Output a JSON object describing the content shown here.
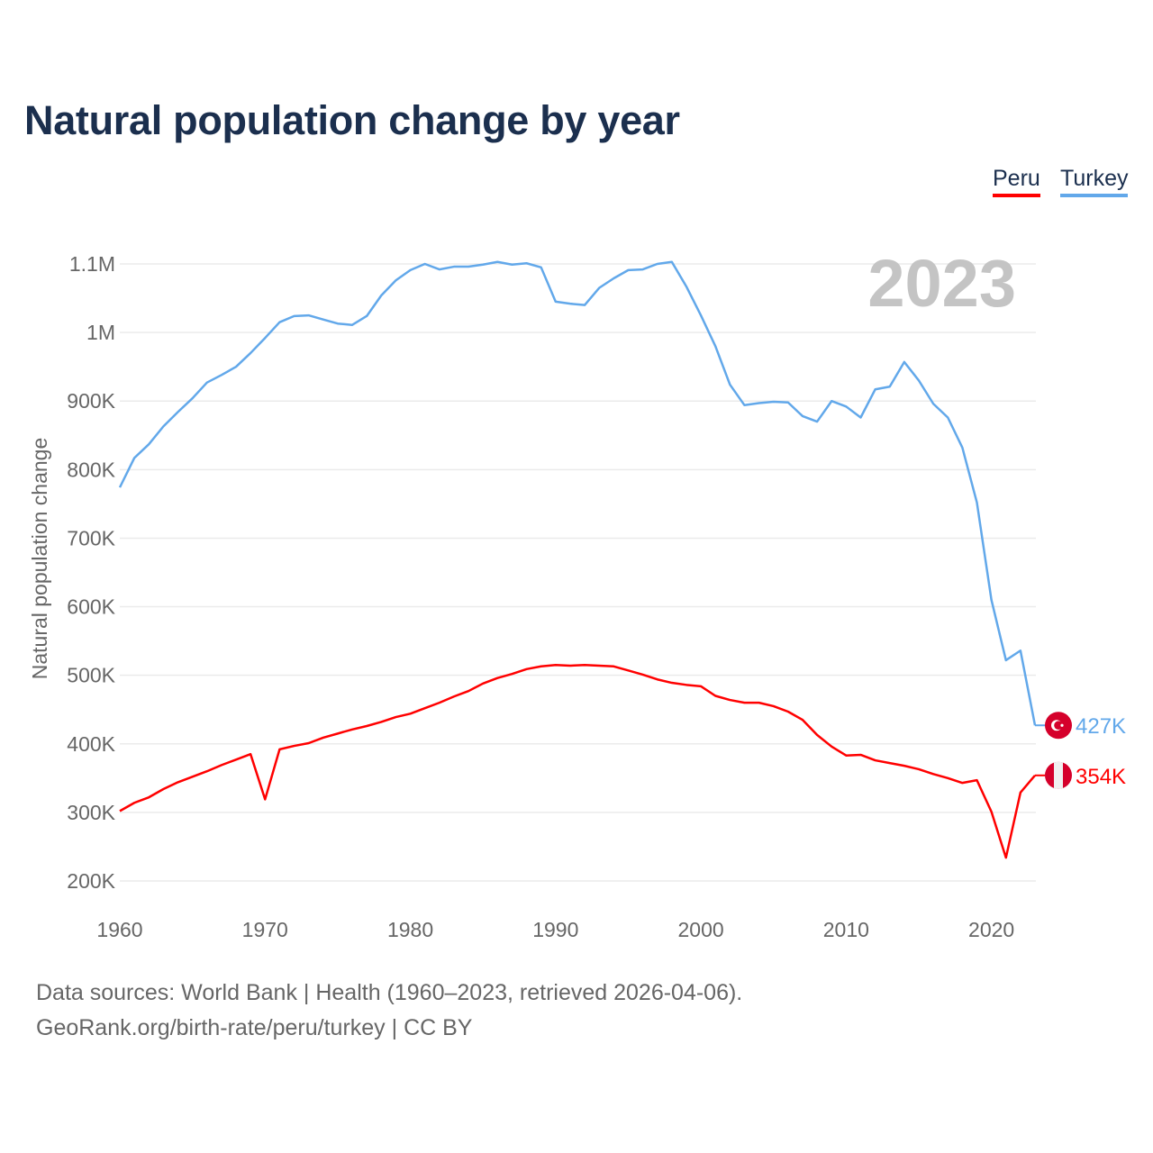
{
  "title": "Natural population change by year",
  "legend": {
    "peru": "Peru",
    "turkey": "Turkey"
  },
  "footer": {
    "line1": "Data sources: World Bank | Health (1960–2023, retrieved 2026-04-06).",
    "line2": "GeoRank.org/birth-rate/peru/turkey | CC BY"
  },
  "chart_data": {
    "type": "line",
    "title": "Natural population change by year",
    "xlabel": "",
    "ylabel": "Natural population change",
    "year_watermark": "2023",
    "xlim": [
      1960,
      2023
    ],
    "ylim": [
      200000,
      1100000
    ],
    "x_ticks": [
      1960,
      1970,
      1980,
      1990,
      2000,
      2010,
      2020
    ],
    "x_tick_labels": [
      "1960",
      "1970",
      "1980",
      "1990",
      "2000",
      "2010",
      "2020"
    ],
    "y_ticks": [
      200000,
      300000,
      400000,
      500000,
      600000,
      700000,
      800000,
      900000,
      1000000,
      1100000
    ],
    "y_tick_labels": [
      "200K",
      "300K",
      "400K",
      "500K",
      "600K",
      "700K",
      "800K",
      "900K",
      "1M",
      "1.1M"
    ],
    "grid": true,
    "legend_position": "top-right",
    "x": [
      1960,
      1961,
      1962,
      1963,
      1964,
      1965,
      1966,
      1967,
      1968,
      1969,
      1970,
      1971,
      1972,
      1973,
      1974,
      1975,
      1976,
      1977,
      1978,
      1979,
      1980,
      1981,
      1982,
      1983,
      1984,
      1985,
      1986,
      1987,
      1988,
      1989,
      1990,
      1991,
      1992,
      1993,
      1994,
      1995,
      1996,
      1997,
      1998,
      1999,
      2000,
      2001,
      2002,
      2003,
      2004,
      2005,
      2006,
      2007,
      2008,
      2009,
      2010,
      2011,
      2012,
      2013,
      2014,
      2015,
      2016,
      2017,
      2018,
      2019,
      2020,
      2021,
      2022,
      2023
    ],
    "series": [
      {
        "name": "Peru",
        "color": "#ff0000",
        "end_label": "354K",
        "values": [
          302,
          314,
          322,
          334,
          344,
          352,
          360,
          369,
          377,
          385,
          319,
          392,
          397,
          401,
          409,
          415,
          421,
          426,
          432,
          439,
          444,
          452,
          460,
          469,
          477,
          488,
          496,
          502,
          509,
          513,
          515,
          514,
          515,
          514,
          513,
          507,
          501,
          494,
          489,
          486,
          484,
          470,
          464,
          460,
          460,
          455,
          447,
          435,
          413,
          396,
          383,
          384,
          376,
          372,
          368,
          363,
          356,
          350,
          343,
          347,
          301,
          234,
          329,
          354
        ],
        "unit_multiplier": 1000
      },
      {
        "name": "Turkey",
        "color": "#62a8ea",
        "end_label": "427K",
        "values": [
          774,
          817,
          837,
          863,
          884,
          904,
          927,
          938,
          950,
          970,
          992,
          1015,
          1024,
          1025,
          1019,
          1013,
          1011,
          1024,
          1054,
          1076,
          1091,
          1100,
          1092,
          1096,
          1096,
          1099,
          1103,
          1099,
          1101,
          1095,
          1045,
          1042,
          1040,
          1065,
          1079,
          1091,
          1092,
          1100,
          1103,
          1067,
          1025,
          980,
          924,
          894,
          897,
          899,
          898,
          878,
          870,
          900,
          892,
          876,
          917,
          921,
          957,
          930,
          896,
          876,
          832,
          752,
          610,
          522,
          536,
          427
        ],
        "unit_multiplier": 1000
      }
    ]
  }
}
